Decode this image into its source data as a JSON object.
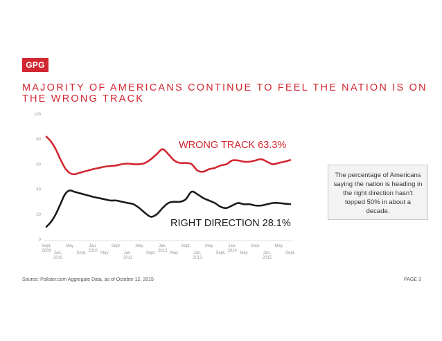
{
  "logo": "GPG",
  "title": "MAJORITY OF AMERICANS CONTINUE TO FEEL THE NATION IS ON THE WRONG TRACK",
  "note": "The percentage of Americans saying the nation is heading in the right direction hasn’t topped 50% in about a decade.",
  "source": "Source: Pollster.com Aggregate Data, as of October 12, 2015",
  "page": "PAGE 3",
  "colors": {
    "accent": "#d22630",
    "wrong_track": "#d22630",
    "right_direction": "#1a1a1a"
  },
  "chart_data": {
    "type": "line",
    "title": "",
    "xlabel": "",
    "ylabel": "",
    "ylim": [
      0,
      100
    ],
    "yticks": [
      0,
      20,
      40,
      60,
      80,
      100
    ],
    "grid": false,
    "xticks": [
      {
        "x": 0,
        "label": [
          "Sept.",
          "2009"
        ],
        "row": 0
      },
      {
        "x": 1,
        "label": [
          "Jan.",
          "2010"
        ],
        "row": 1
      },
      {
        "x": 2,
        "label": [
          "May"
        ],
        "row": 0
      },
      {
        "x": 3,
        "label": [
          "Sept."
        ],
        "row": 1
      },
      {
        "x": 4,
        "label": [
          "Jan.",
          "2010"
        ],
        "row": 0
      },
      {
        "x": 5,
        "label": [
          "May"
        ],
        "row": 1
      },
      {
        "x": 6,
        "label": [
          "Sept."
        ],
        "row": 0
      },
      {
        "x": 7,
        "label": [
          "Jan.",
          "2011"
        ],
        "row": 1
      },
      {
        "x": 8,
        "label": [
          "May"
        ],
        "row": 0
      },
      {
        "x": 9,
        "label": [
          "Sept."
        ],
        "row": 1
      },
      {
        "x": 10,
        "label": [
          "Jan.",
          "2012"
        ],
        "row": 0
      },
      {
        "x": 11,
        "label": [
          "May"
        ],
        "row": 1
      },
      {
        "x": 12,
        "label": [
          "Sept."
        ],
        "row": 0
      },
      {
        "x": 13,
        "label": [
          "Jan.",
          "2013"
        ],
        "row": 1
      },
      {
        "x": 14,
        "label": [
          "May"
        ],
        "row": 0
      },
      {
        "x": 15,
        "label": [
          "Sept."
        ],
        "row": 1
      },
      {
        "x": 16,
        "label": [
          "Jan.",
          "2014"
        ],
        "row": 0
      },
      {
        "x": 17,
        "label": [
          "May"
        ],
        "row": 1
      },
      {
        "x": 18,
        "label": [
          "Sept."
        ],
        "row": 0
      },
      {
        "x": 19,
        "label": [
          "Jan.",
          "2015"
        ],
        "row": 1
      },
      {
        "x": 20,
        "label": [
          "May"
        ],
        "row": 0
      },
      {
        "x": 21,
        "label": [
          "Sept."
        ],
        "row": 1
      }
    ],
    "xlim": [
      0,
      21
    ],
    "series": [
      {
        "name": "WRONG TRACK",
        "end_label": "WRONG TRACK 63.3%",
        "x": [
          0,
          0.4,
          0.8,
          1.2,
          1.6,
          2.0,
          2.4,
          2.8,
          3.2,
          3.6,
          4.0,
          4.5,
          5.0,
          5.5,
          6.0,
          6.5,
          7.0,
          7.5,
          8.0,
          8.5,
          9.0,
          9.5,
          10.0,
          10.5,
          11.0,
          11.5,
          12.0,
          12.5,
          13.0,
          13.5,
          14.0,
          14.5,
          15.0,
          15.5,
          16.0,
          16.5,
          17.0,
          17.5,
          18.0,
          18.5,
          19.0,
          19.5,
          20.0,
          20.5,
          21.0
        ],
        "values": [
          82,
          78,
          72,
          64,
          57,
          53,
          52,
          53,
          54,
          55,
          56,
          57,
          58,
          58.5,
          59,
          60,
          60.5,
          60,
          60,
          61,
          64,
          68,
          72,
          68,
          63,
          61,
          61,
          60,
          55,
          54,
          56,
          57,
          59,
          60,
          63,
          63,
          62,
          62,
          63,
          64,
          62,
          60,
          61,
          62,
          63.3
        ]
      },
      {
        "name": "RIGHT DIRECTION",
        "end_label": "RIGHT DIRECTION 28.1%",
        "x": [
          0,
          0.4,
          0.8,
          1.2,
          1.6,
          2.0,
          2.4,
          2.8,
          3.2,
          3.6,
          4.0,
          4.5,
          5.0,
          5.5,
          6.0,
          6.5,
          7.0,
          7.5,
          8.0,
          8.5,
          9.0,
          9.5,
          10.0,
          10.5,
          11.0,
          11.5,
          12.0,
          12.5,
          13.0,
          13.5,
          14.0,
          14.5,
          15.0,
          15.5,
          16.0,
          16.5,
          17.0,
          17.5,
          18.0,
          18.5,
          19.0,
          19.5,
          20.0,
          20.5,
          21.0
        ],
        "values": [
          10,
          14,
          20,
          28,
          36,
          39,
          38,
          37,
          36,
          35,
          34,
          33,
          32,
          31,
          31,
          30,
          29,
          28,
          25,
          21,
          18,
          20,
          25,
          29,
          30,
          30,
          32,
          38,
          36,
          33,
          31,
          29,
          26,
          25,
          27,
          29,
          28,
          28,
          27,
          27,
          28,
          29,
          29,
          28.5,
          28.1
        ]
      }
    ]
  }
}
